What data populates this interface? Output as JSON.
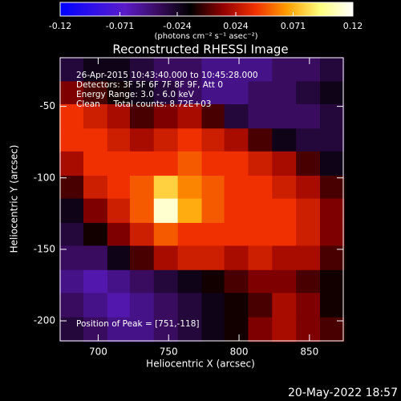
{
  "chart_data": {
    "type": "heatmap",
    "title": "Reconstructed RHESSI Image",
    "x_label": "Heliocentric X (arcsec)",
    "y_label": "Heliocentric Y (arcsec)",
    "xlim": [
      673,
      874
    ],
    "ylim": [
      -214,
      -16
    ],
    "xticks": [
      700,
      750,
      800,
      850
    ],
    "yticks": [
      -50,
      -100,
      -150,
      -200
    ],
    "x": [
      681,
      698,
      715,
      731,
      748,
      765,
      782,
      798,
      815,
      832,
      849,
      866
    ],
    "y": [
      -24,
      -41,
      -57,
      -74,
      -90,
      -107,
      -123,
      -140,
      -156,
      -173,
      -189,
      -206
    ],
    "values": [
      [
        -0.03,
        -0.02,
        -0.02,
        -0.03,
        -0.04,
        -0.04,
        -0.05,
        -0.05,
        -0.05,
        -0.04,
        -0.04,
        -0.03
      ],
      [
        0.01,
        0.0,
        -0.01,
        -0.02,
        -0.03,
        -0.04,
        -0.05,
        -0.05,
        -0.04,
        -0.04,
        -0.03,
        -0.02
      ],
      [
        0.04,
        0.03,
        0.02,
        0.0,
        0.01,
        0.02,
        0.0,
        -0.03,
        -0.04,
        -0.04,
        -0.04,
        -0.03
      ],
      [
        0.04,
        0.04,
        0.03,
        0.02,
        0.03,
        0.04,
        0.03,
        0.02,
        0.0,
        -0.02,
        -0.03,
        -0.03
      ],
      [
        0.02,
        0.04,
        0.04,
        0.04,
        0.04,
        0.05,
        0.04,
        0.04,
        0.03,
        0.02,
        0.0,
        -0.02
      ],
      [
        0.0,
        0.03,
        0.04,
        0.05,
        0.08,
        0.06,
        0.05,
        0.04,
        0.04,
        0.03,
        0.02,
        0.0
      ],
      [
        -0.02,
        0.01,
        0.03,
        0.05,
        0.11,
        0.07,
        0.05,
        0.04,
        0.04,
        0.04,
        0.03,
        0.01
      ],
      [
        -0.03,
        -0.01,
        0.01,
        0.03,
        0.05,
        0.04,
        0.04,
        0.04,
        0.04,
        0.04,
        0.03,
        0.01
      ],
      [
        -0.04,
        -0.04,
        -0.02,
        0.0,
        0.02,
        0.03,
        0.03,
        0.02,
        0.03,
        0.02,
        0.02,
        0.0
      ],
      [
        -0.05,
        -0.06,
        -0.05,
        -0.04,
        -0.03,
        -0.02,
        -0.01,
        0.0,
        0.01,
        0.01,
        0.0,
        -0.01
      ],
      [
        -0.04,
        -0.05,
        -0.06,
        -0.05,
        -0.04,
        -0.03,
        -0.02,
        -0.01,
        0.0,
        0.02,
        0.01,
        -0.01
      ],
      [
        -0.03,
        -0.04,
        -0.05,
        -0.05,
        -0.04,
        -0.03,
        -0.02,
        -0.01,
        0.01,
        0.02,
        0.01,
        0.0
      ]
    ],
    "colorbar": {
      "lim": [
        -0.12,
        0.12
      ],
      "ticks": [
        -0.12,
        -0.071,
        -0.024,
        0.024,
        0.071,
        0.12
      ],
      "label": "(photons cm⁻² s⁻¹ asec⁻²)",
      "colors": [
        "#0000ff",
        "#3010e8",
        "#5a1cc8",
        "#3a0c60",
        "#000000",
        "#900000",
        "#f03000",
        "#ffa000",
        "#ffff80",
        "#ffffff"
      ]
    },
    "annotations": [
      "26-Apr-2015 10:43:40.000 to 10:45:28.000",
      "Detectors: 3F 5F 6F 7F 8F 9F, Att 0",
      "Energy Range: 3.0 - 6.0 keV",
      "Clean     Total counts: 8.72E+03"
    ],
    "peak_note": "Position of Peak = [751,-118]"
  },
  "footer": "20-May-2022 18:57"
}
